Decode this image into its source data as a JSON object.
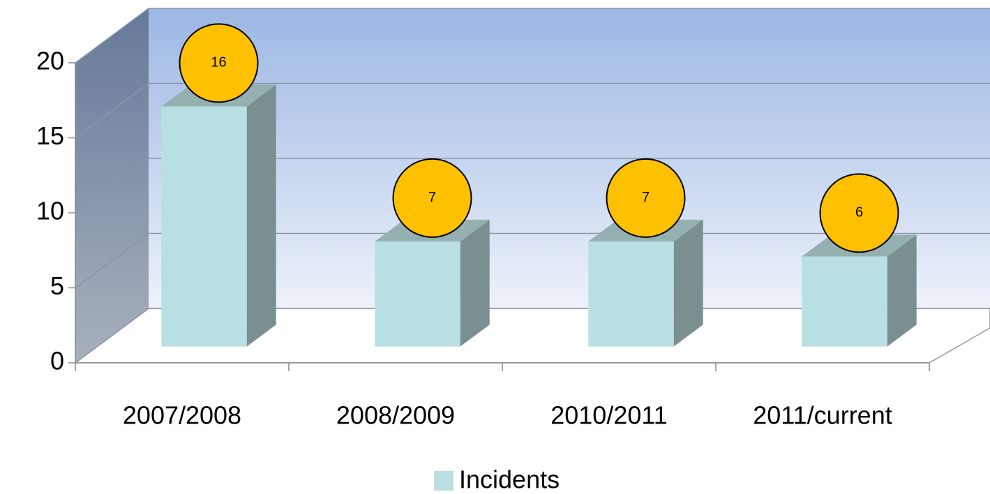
{
  "chart_data": {
    "type": "bar3d",
    "categories": [
      "2007/2008",
      "2008/2009",
      "2010/2011",
      "2011/current"
    ],
    "series": [
      {
        "name": "Incidents",
        "color": "#b8dfe2",
        "values": [
          16,
          7,
          7,
          6
        ]
      }
    ],
    "ylim": [
      0,
      20
    ],
    "yticks": [
      0,
      5,
      10,
      15,
      20
    ],
    "grid": true,
    "legend": "bottom"
  }
}
